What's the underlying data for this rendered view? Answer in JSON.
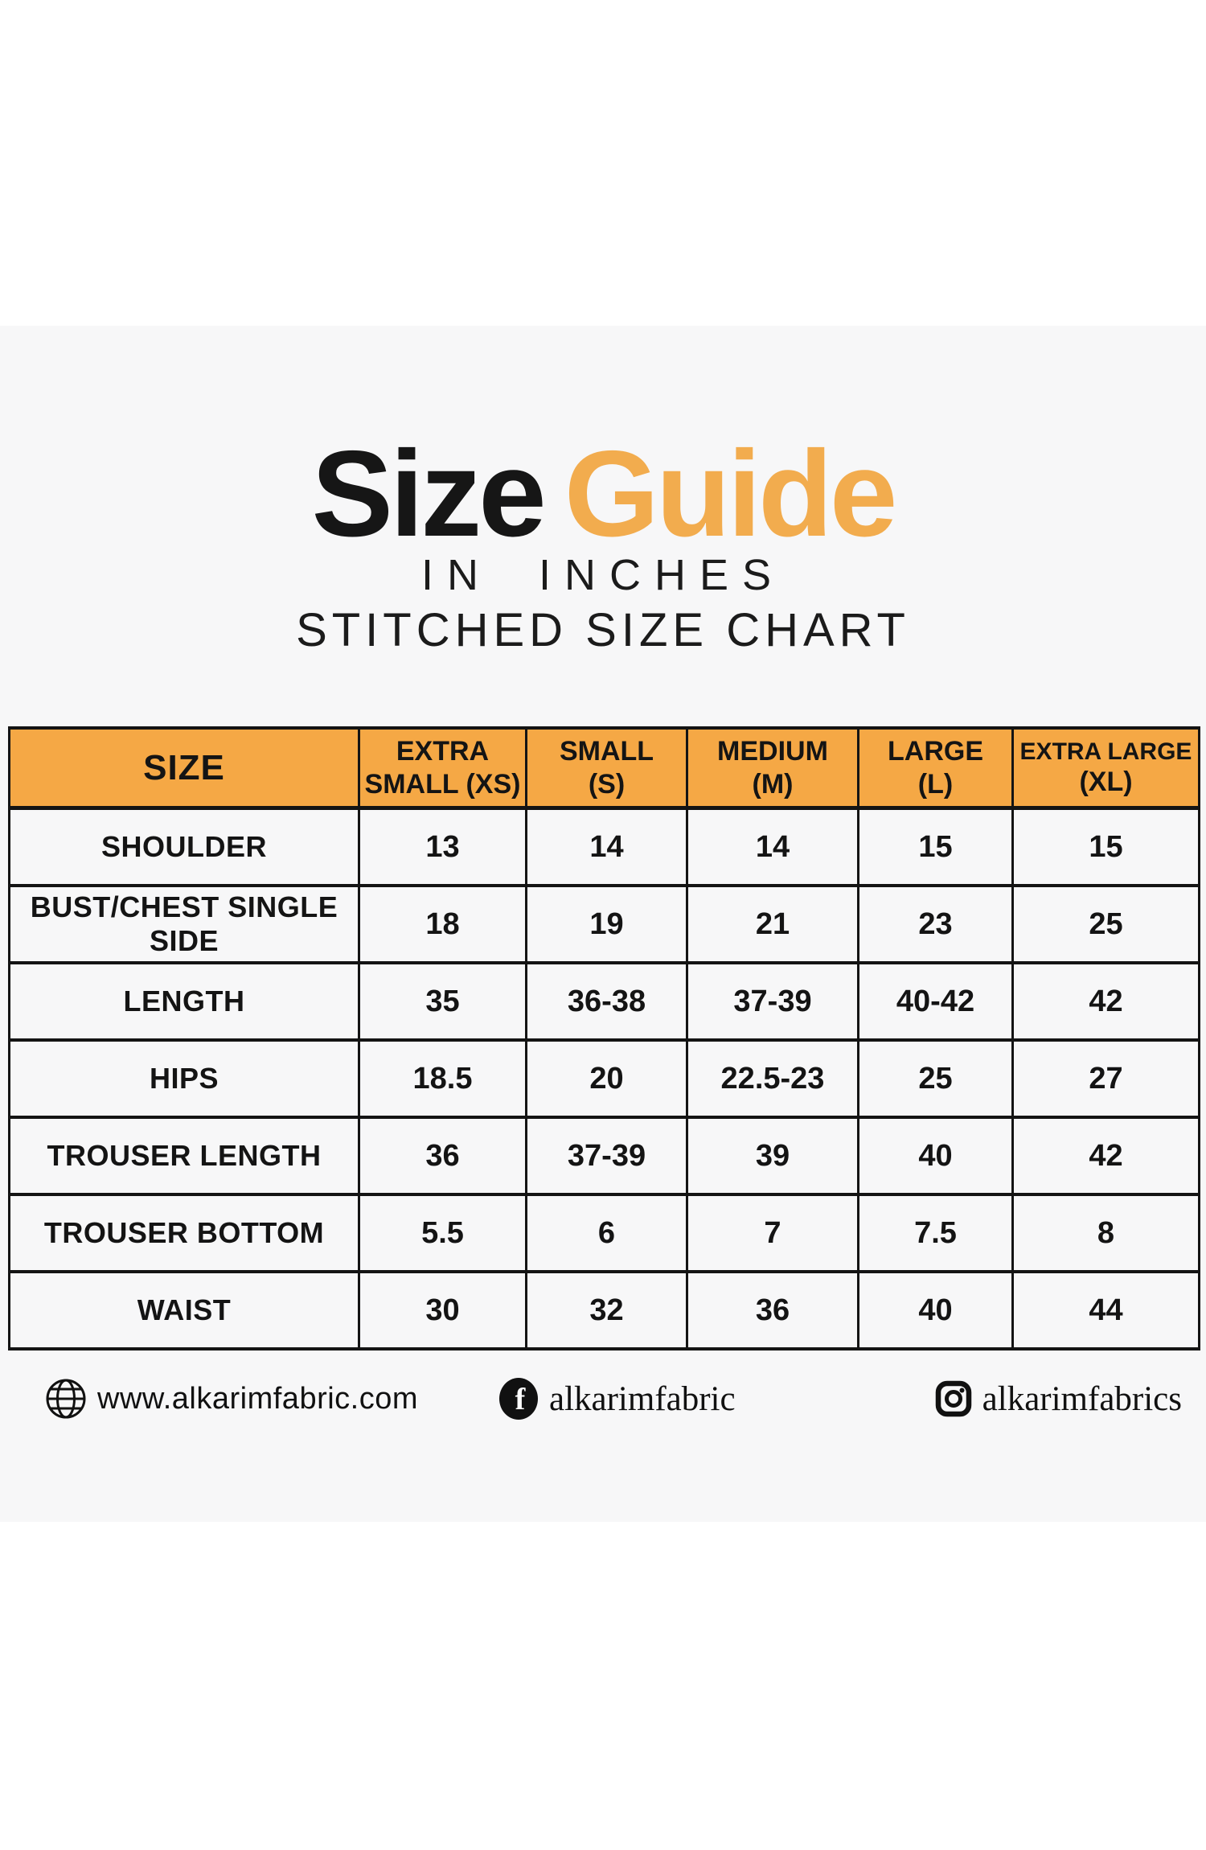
{
  "title": {
    "word_black": "Size",
    "word_orange": "Guide"
  },
  "subtitle_line1": "IN INCHES",
  "subtitle_line2": "STITCHED SIZE CHART",
  "colors": {
    "title_orange": "#F2AC4E",
    "header_orange": "#F5A845",
    "panel_bg": "#F7F7F8",
    "text_black": "#141414"
  },
  "table": {
    "header": [
      {
        "lines": [
          "SIZE"
        ]
      },
      {
        "lines": [
          "EXTRA",
          "SMALL (XS)"
        ]
      },
      {
        "lines": [
          "SMALL",
          "(S)"
        ]
      },
      {
        "lines": [
          "MEDIUM",
          "(M)"
        ]
      },
      {
        "lines": [
          "LARGE",
          "(L)"
        ]
      },
      {
        "lines": [
          "EXTRA LARGE",
          "(XL)"
        ]
      }
    ]
  },
  "chart_data": {
    "type": "table",
    "title": "Size Guide — Stitched Size Chart (in inches)",
    "columns": [
      "SIZE",
      "EXTRA SMALL (XS)",
      "SMALL (S)",
      "MEDIUM (M)",
      "LARGE (L)",
      "EXTRA LARGE (XL)"
    ],
    "rows": [
      {
        "label": "SHOULDER",
        "values": [
          "13",
          "14",
          "14",
          "15",
          "15"
        ]
      },
      {
        "label": "BUST/CHEST SINGLE SIDE",
        "values": [
          "18",
          "19",
          "21",
          "23",
          "25"
        ]
      },
      {
        "label": "LENGTH",
        "values": [
          "35",
          "36-38",
          "37-39",
          "40-42",
          "42"
        ]
      },
      {
        "label": "HIPS",
        "values": [
          "18.5",
          "20",
          "22.5-23",
          "25",
          "27"
        ]
      },
      {
        "label": "TROUSER LENGTH",
        "values": [
          "36",
          "37-39",
          "39",
          "40",
          "42"
        ]
      },
      {
        "label": "TROUSER BOTTOM",
        "values": [
          "5.5",
          "6",
          "7",
          "7.5",
          "8"
        ]
      },
      {
        "label": "WAIST",
        "values": [
          "30",
          "32",
          "36",
          "40",
          "44"
        ]
      }
    ]
  },
  "footer": {
    "website": {
      "icon": "globe-icon",
      "text": "www.alkarimfabric.com"
    },
    "facebook": {
      "icon": "facebook-icon",
      "text": "alkarimfabric"
    },
    "instagram": {
      "icon": "instagram-icon",
      "text": "alkarimfabrics"
    }
  }
}
